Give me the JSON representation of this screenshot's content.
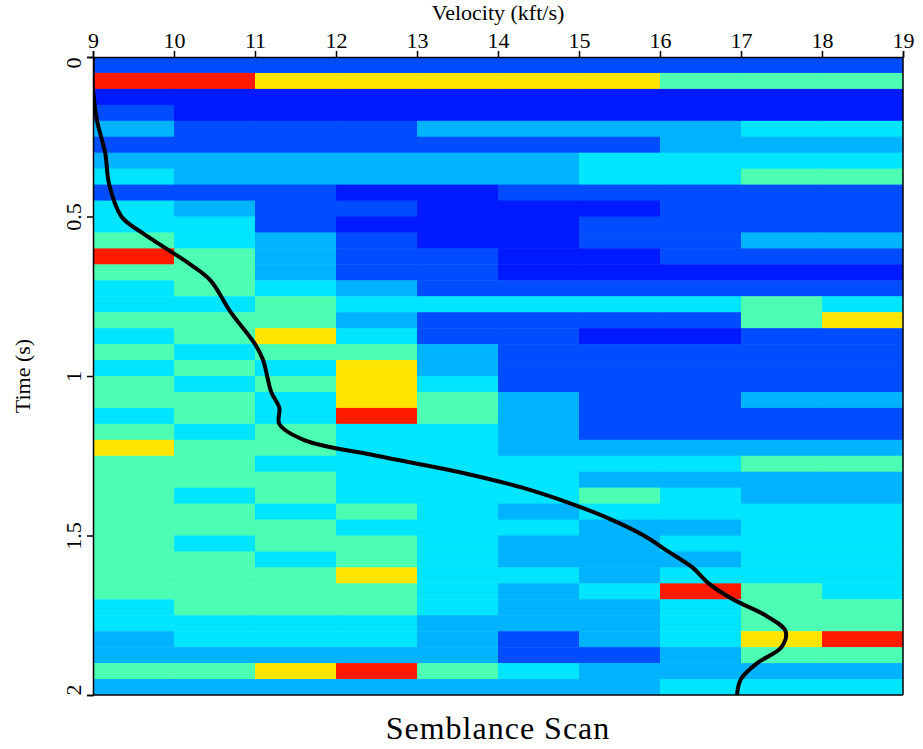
{
  "chart_data": {
    "type": "heatmap",
    "title": "Semblance Scan",
    "x_label": "Velocity (kft/s)",
    "y_label": "Time (s)",
    "xlim": [
      9,
      19
    ],
    "xticks": [
      9,
      10,
      11,
      12,
      13,
      14,
      15,
      16,
      17,
      18,
      19
    ],
    "ylim": [
      0,
      2
    ],
    "yticks": [
      0,
      0.5,
      1,
      1.5,
      2
    ],
    "zlim": [
      0,
      1
    ],
    "cells": {
      "x_edges": [
        9,
        10,
        11,
        12,
        13,
        14,
        15,
        16,
        17,
        18,
        19
      ],
      "y_edges": [
        0,
        0.05,
        0.1,
        0.15,
        0.2,
        0.25,
        0.3,
        0.35,
        0.4,
        0.45,
        0.5,
        0.55,
        0.6,
        0.65,
        0.7,
        0.75,
        0.8,
        0.85,
        0.9,
        0.95,
        1,
        1.05,
        1.1,
        1.15,
        1.2,
        1.25,
        1.3,
        1.35,
        1.4,
        1.45,
        1.5,
        1.55,
        1.6,
        1.65,
        1.7,
        1.75,
        1.8,
        1.85,
        1.9,
        1.95,
        2
      ],
      "z": [
        [
          0.2,
          0.2,
          0.2,
          0.2,
          0.2,
          0.2,
          0.2,
          0.2,
          0.2,
          0.2
        ],
        [
          0.85,
          0.85,
          0.65,
          0.65,
          0.65,
          0.65,
          0.65,
          0.45,
          0.45,
          0.45
        ],
        [
          0.15,
          0.15,
          0.15,
          0.15,
          0.15,
          0.15,
          0.15,
          0.15,
          0.15,
          0.15
        ],
        [
          0.2,
          0.15,
          0.15,
          0.15,
          0.15,
          0.15,
          0.15,
          0.15,
          0.15,
          0.15
        ],
        [
          0.3,
          0.2,
          0.2,
          0.2,
          0.3,
          0.3,
          0.3,
          0.3,
          0.35,
          0.35
        ],
        [
          0.2,
          0.2,
          0.2,
          0.2,
          0.2,
          0.2,
          0.2,
          0.3,
          0.3,
          0.3
        ],
        [
          0.3,
          0.3,
          0.3,
          0.3,
          0.3,
          0.3,
          0.35,
          0.35,
          0.35,
          0.35
        ],
        [
          0.35,
          0.3,
          0.3,
          0.3,
          0.3,
          0.3,
          0.35,
          0.35,
          0.45,
          0.45
        ],
        [
          0.2,
          0.2,
          0.2,
          0.15,
          0.15,
          0.2,
          0.2,
          0.2,
          0.2,
          0.2
        ],
        [
          0.35,
          0.3,
          0.2,
          0.2,
          0.15,
          0.15,
          0.15,
          0.2,
          0.2,
          0.2
        ],
        [
          0.35,
          0.35,
          0.2,
          0.15,
          0.15,
          0.15,
          0.2,
          0.2,
          0.2,
          0.2
        ],
        [
          0.45,
          0.35,
          0.3,
          0.2,
          0.15,
          0.15,
          0.2,
          0.2,
          0.3,
          0.3
        ],
        [
          0.85,
          0.45,
          0.3,
          0.2,
          0.2,
          0.15,
          0.15,
          0.2,
          0.2,
          0.2
        ],
        [
          0.45,
          0.45,
          0.3,
          0.2,
          0.2,
          0.15,
          0.15,
          0.15,
          0.15,
          0.15
        ],
        [
          0.35,
          0.45,
          0.35,
          0.3,
          0.2,
          0.2,
          0.2,
          0.2,
          0.2,
          0.2
        ],
        [
          0.35,
          0.35,
          0.45,
          0.35,
          0.35,
          0.35,
          0.35,
          0.35,
          0.45,
          0.35
        ],
        [
          0.45,
          0.45,
          0.45,
          0.3,
          0.2,
          0.2,
          0.2,
          0.2,
          0.45,
          0.65
        ],
        [
          0.35,
          0.45,
          0.65,
          0.35,
          0.2,
          0.2,
          0.15,
          0.15,
          0.2,
          0.2
        ],
        [
          0.45,
          0.35,
          0.45,
          0.45,
          0.3,
          0.2,
          0.2,
          0.2,
          0.2,
          0.2
        ],
        [
          0.35,
          0.45,
          0.35,
          0.65,
          0.3,
          0.2,
          0.2,
          0.2,
          0.2,
          0.2
        ],
        [
          0.45,
          0.35,
          0.45,
          0.65,
          0.35,
          0.2,
          0.2,
          0.2,
          0.2,
          0.2
        ],
        [
          0.45,
          0.45,
          0.35,
          0.65,
          0.45,
          0.3,
          0.2,
          0.2,
          0.3,
          0.3
        ],
        [
          0.35,
          0.45,
          0.35,
          0.85,
          0.45,
          0.3,
          0.2,
          0.2,
          0.2,
          0.2
        ],
        [
          0.45,
          0.35,
          0.45,
          0.35,
          0.35,
          0.3,
          0.2,
          0.2,
          0.2,
          0.2
        ],
        [
          0.65,
          0.45,
          0.45,
          0.35,
          0.35,
          0.3,
          0.3,
          0.3,
          0.3,
          0.3
        ],
        [
          0.45,
          0.45,
          0.35,
          0.35,
          0.35,
          0.35,
          0.35,
          0.35,
          0.45,
          0.45
        ],
        [
          0.45,
          0.45,
          0.45,
          0.35,
          0.35,
          0.35,
          0.3,
          0.3,
          0.3,
          0.3
        ],
        [
          0.45,
          0.35,
          0.45,
          0.35,
          0.35,
          0.35,
          0.45,
          0.35,
          0.3,
          0.3
        ],
        [
          0.45,
          0.45,
          0.35,
          0.45,
          0.35,
          0.3,
          0.35,
          0.35,
          0.35,
          0.35
        ],
        [
          0.45,
          0.45,
          0.45,
          0.35,
          0.35,
          0.35,
          0.3,
          0.3,
          0.35,
          0.35
        ],
        [
          0.45,
          0.35,
          0.45,
          0.45,
          0.35,
          0.3,
          0.3,
          0.35,
          0.35,
          0.35
        ],
        [
          0.45,
          0.45,
          0.35,
          0.45,
          0.35,
          0.3,
          0.3,
          0.3,
          0.35,
          0.35
        ],
        [
          0.45,
          0.45,
          0.45,
          0.65,
          0.35,
          0.35,
          0.3,
          0.35,
          0.35,
          0.35
        ],
        [
          0.45,
          0.45,
          0.45,
          0.45,
          0.35,
          0.3,
          0.35,
          0.85,
          0.45,
          0.35
        ],
        [
          0.35,
          0.45,
          0.45,
          0.45,
          0.35,
          0.3,
          0.3,
          0.35,
          0.45,
          0.45
        ],
        [
          0.35,
          0.35,
          0.35,
          0.35,
          0.3,
          0.3,
          0.3,
          0.35,
          0.45,
          0.45
        ],
        [
          0.3,
          0.35,
          0.35,
          0.35,
          0.3,
          0.2,
          0.3,
          0.35,
          0.65,
          0.85
        ],
        [
          0.3,
          0.3,
          0.3,
          0.3,
          0.3,
          0.2,
          0.2,
          0.3,
          0.45,
          0.45
        ],
        [
          0.45,
          0.45,
          0.65,
          0.85,
          0.45,
          0.35,
          0.3,
          0.3,
          0.3,
          0.3
        ],
        [
          0.3,
          0.3,
          0.3,
          0.3,
          0.3,
          0.3,
          0.3,
          0.35,
          0.35,
          0.35
        ]
      ]
    },
    "series": [
      {
        "color": "#000000",
        "line_style": "solid",
        "x": [
          9.0,
          9.0,
          9.05,
          9.15,
          9.2,
          9.35,
          9.6,
          9.9,
          10.2,
          10.45,
          10.7,
          11.0,
          11.1,
          11.15,
          11.2,
          11.3,
          11.3,
          11.6,
          12.5,
          13.5,
          14.3,
          14.9,
          15.4,
          15.8,
          16.1,
          16.4,
          16.6,
          16.9,
          17.3,
          17.55,
          17.5,
          17.2,
          17.0,
          16.95
        ],
        "y": [
          0,
          0.1,
          0.2,
          0.3,
          0.4,
          0.5,
          0.55,
          0.6,
          0.65,
          0.7,
          0.8,
          0.9,
          0.95,
          1.0,
          1.05,
          1.1,
          1.15,
          1.2,
          1.25,
          1.3,
          1.35,
          1.4,
          1.45,
          1.5,
          1.55,
          1.6,
          1.65,
          1.7,
          1.75,
          1.8,
          1.85,
          1.9,
          1.95,
          2.0
        ]
      }
    ]
  }
}
